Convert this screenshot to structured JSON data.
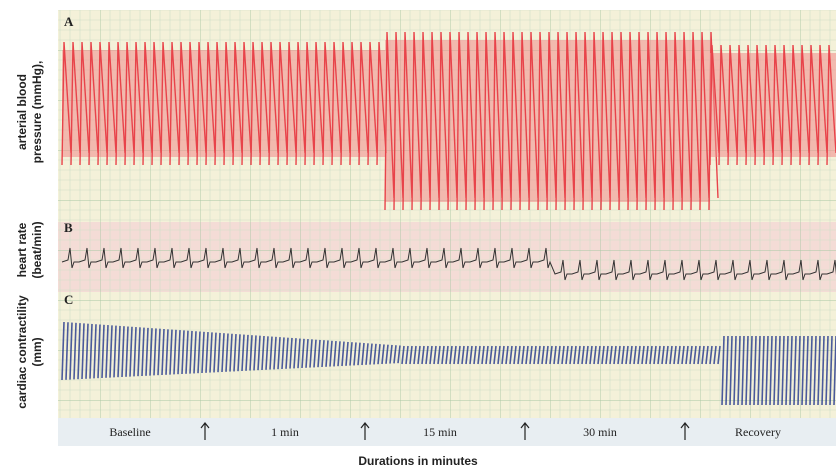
{
  "panels": [
    {
      "label": "A",
      "y_label": [
        "arterial blood",
        "pressure (mmHg),"
      ]
    },
    {
      "label": "B",
      "y_label": [
        "heart rate",
        "(beat/min)"
      ]
    },
    {
      "label": "C",
      "y_label": [
        "cardiac contractility",
        "(mm)"
      ]
    }
  ],
  "timeline": [
    "Baseline",
    "1 min",
    "15 min",
    "30 min",
    "Recovery"
  ],
  "x_label": "Durations in minutes"
}
